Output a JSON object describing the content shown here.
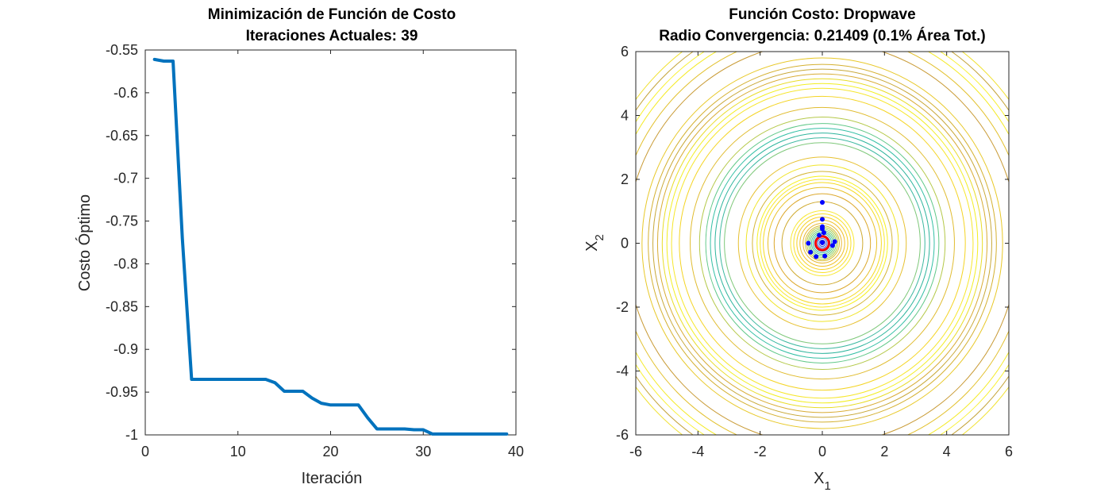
{
  "chart_data": [
    {
      "type": "line",
      "title": "Minimización de Función de Costo",
      "subtitle": "Iteraciones Actuales: 39",
      "xlabel": "Iteración",
      "ylabel": "Costo Óptimo",
      "xlim": [
        0,
        40
      ],
      "ylim": [
        -1,
        -0.55
      ],
      "xticks": [
        "0",
        "10",
        "20",
        "30",
        "40"
      ],
      "yticks": [
        "-0.55",
        "-0.6",
        "-0.65",
        "-0.7",
        "-0.75",
        "-0.8",
        "-0.85",
        "-0.9",
        "-0.95",
        "-1"
      ],
      "grid": false,
      "series": [
        {
          "color": "#0072BD",
          "x": [
            1,
            2,
            3,
            4,
            5,
            6,
            7,
            8,
            9,
            10,
            11,
            12,
            13,
            14,
            15,
            16,
            17,
            18,
            19,
            20,
            21,
            22,
            23,
            24,
            25,
            26,
            27,
            28,
            29,
            30,
            31,
            32,
            33,
            34,
            35,
            36,
            37,
            38,
            39
          ],
          "y": [
            -0.561,
            -0.563,
            -0.563,
            -0.77,
            -0.935,
            -0.935,
            -0.935,
            -0.935,
            -0.935,
            -0.935,
            -0.935,
            -0.935,
            -0.935,
            -0.939,
            -0.949,
            -0.949,
            -0.949,
            -0.957,
            -0.963,
            -0.965,
            -0.965,
            -0.965,
            -0.965,
            -0.98,
            -0.993,
            -0.993,
            -0.993,
            -0.993,
            -0.994,
            -0.994,
            -0.999,
            -0.999,
            -0.999,
            -0.999,
            -0.999,
            -0.999,
            -0.999,
            -0.999,
            -0.999
          ]
        }
      ]
    },
    {
      "type": "contour",
      "title": "Función Costo: Dropwave",
      "subtitle": "Radio Convergencia: 0.21409 (0.1% Área Tot.)",
      "xlabel_base": "X",
      "xlabel_sub": "1",
      "ylabel_base": "X",
      "ylabel_sub": "2",
      "xlim": [
        -6,
        6
      ],
      "ylim": [
        -6,
        6
      ],
      "xticks": [
        "-6",
        "-4",
        "-2",
        "0",
        "2",
        "4",
        "6"
      ],
      "yticks": [
        "6",
        "4",
        "2",
        "0",
        "-2",
        "-4",
        "-6"
      ],
      "contour_radii": [
        0.05,
        0.1,
        0.15,
        0.2,
        0.25,
        0.3,
        0.35,
        0.4,
        0.45,
        0.5,
        0.55,
        0.62,
        0.72,
        0.82,
        0.92,
        1.02,
        1.3,
        1.55,
        1.75,
        1.9,
        2.0,
        2.1,
        2.25,
        2.45,
        2.7,
        3.15,
        3.3,
        3.45,
        3.6,
        3.75,
        3.95,
        4.25,
        4.6,
        4.85,
        5.0,
        5.15,
        5.3,
        5.45,
        5.6,
        5.8,
        6.3,
        6.6,
        6.9,
        7.1,
        7.3,
        7.5
      ],
      "contour_colors": [
        "#1f2fa0",
        "#2a48c8",
        "#3066d8",
        "#2b86c8",
        "#25a0b8",
        "#2bb4a4",
        "#45c088",
        "#6cc870",
        "#93cc58",
        "#b8c844",
        "#d8c03a",
        "#e8b834",
        "#f0c028",
        "#f6d020",
        "#fae026",
        "#f8e838",
        "#cfaa30",
        "#dca82c",
        "#e8c028",
        "#f5da22",
        "#f8e82c",
        "#f5f020",
        "#d4b534",
        "#f0e428",
        "#e6c030",
        "#7ec87a",
        "#3cb8a0",
        "#2cb49c",
        "#33bfa4",
        "#60c888",
        "#b4c848",
        "#e0bc30",
        "#f4d424",
        "#f6e62c",
        "#f2ee22",
        "#e8dc28",
        "#d8ac34",
        "#c8a838",
        "#d4b030",
        "#e8c828",
        "#c89a34",
        "#e2c02c",
        "#f4ea24",
        "#f8f030",
        "#c4a438",
        "#f0e02c"
      ],
      "convergence_radius": 0.21409,
      "convergence_color": "#ff0000",
      "particles": {
        "color": "#0000ff",
        "points": [
          [
            0,
            1.28
          ],
          [
            0,
            0.75
          ],
          [
            0,
            0.52
          ],
          [
            0,
            0.45
          ],
          [
            0.05,
            0.33
          ],
          [
            -0.1,
            0.25
          ],
          [
            -0.45,
            0.0
          ],
          [
            0.4,
            0.05
          ],
          [
            0.33,
            -0.07
          ],
          [
            -0.38,
            -0.28
          ],
          [
            -0.2,
            -0.42
          ],
          [
            0.08,
            -0.4
          ],
          [
            0.0,
            0.02
          ]
        ]
      }
    }
  ]
}
